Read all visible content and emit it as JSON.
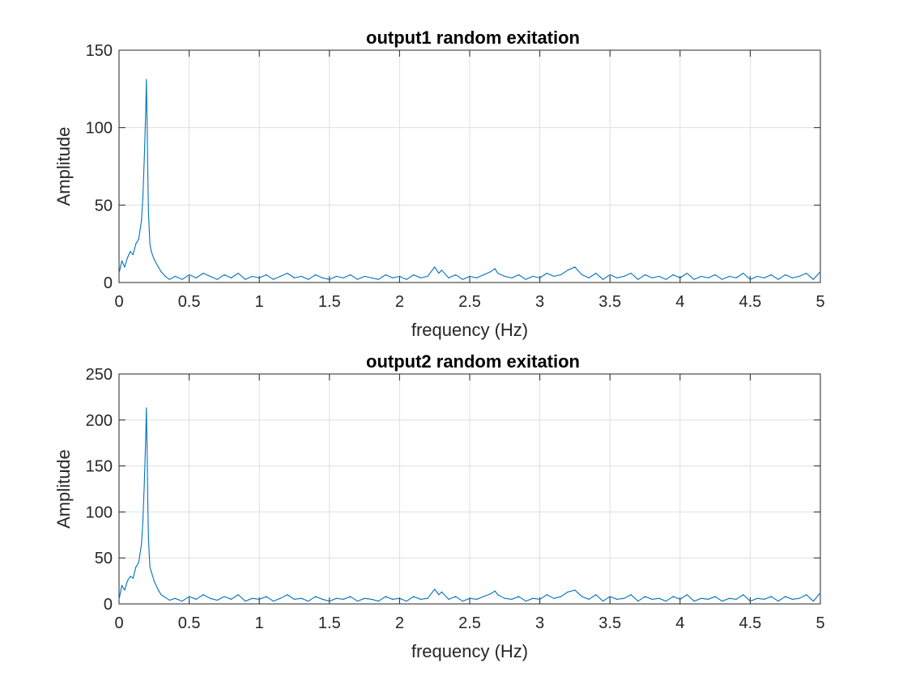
{
  "chart_data": [
    {
      "type": "line",
      "title": "output1 random exitation",
      "xlabel": "frequency (Hz)",
      "ylabel": "Amplitude",
      "xlim": [
        0,
        5
      ],
      "ylim": [
        0,
        150
      ],
      "xticks": [
        "0",
        "0.5",
        "1",
        "1.5",
        "2",
        "2.5",
        "3",
        "3.5",
        "4",
        "4.5",
        "5"
      ],
      "yticks": [
        "0",
        "50",
        "100",
        "150"
      ],
      "grid": true,
      "color": "#0072bd",
      "series": [
        {
          "x": [
            0,
            0.02,
            0.04,
            0.06,
            0.08,
            0.1,
            0.12,
            0.14,
            0.16,
            0.17,
            0.18,
            0.19,
            0.195,
            0.2,
            0.205,
            0.21,
            0.22,
            0.23,
            0.25,
            0.28,
            0.3,
            0.33,
            0.36,
            0.4,
            0.45,
            0.5,
            0.55,
            0.6,
            0.65,
            0.7,
            0.75,
            0.8,
            0.85,
            0.9,
            0.95,
            1.0,
            1.05,
            1.1,
            1.15,
            1.2,
            1.25,
            1.3,
            1.35,
            1.4,
            1.45,
            1.5,
            1.55,
            1.6,
            1.65,
            1.7,
            1.75,
            1.8,
            1.85,
            1.9,
            1.95,
            2.0,
            2.05,
            2.1,
            2.15,
            2.2,
            2.25,
            2.28,
            2.3,
            2.35,
            2.4,
            2.45,
            2.5,
            2.55,
            2.6,
            2.65,
            2.68,
            2.7,
            2.75,
            2.8,
            2.85,
            2.9,
            2.95,
            3.0,
            3.05,
            3.1,
            3.15,
            3.2,
            3.25,
            3.3,
            3.35,
            3.4,
            3.45,
            3.5,
            3.55,
            3.6,
            3.65,
            3.7,
            3.75,
            3.8,
            3.85,
            3.9,
            3.95,
            4.0,
            4.05,
            4.1,
            4.15,
            4.2,
            4.25,
            4.3,
            4.35,
            4.4,
            4.45,
            4.5,
            4.55,
            4.6,
            4.65,
            4.7,
            4.75,
            4.8,
            4.85,
            4.9,
            4.95,
            5.0
          ],
          "y": [
            6,
            14,
            10,
            16,
            20,
            18,
            25,
            28,
            40,
            55,
            80,
            110,
            131,
            105,
            70,
            45,
            25,
            20,
            15,
            10,
            7,
            4,
            2,
            4,
            2,
            5,
            3,
            6,
            4,
            2,
            5,
            3,
            6,
            2,
            4,
            3,
            5,
            2,
            4,
            6,
            3,
            4,
            2,
            5,
            3,
            2,
            4,
            3,
            5,
            2,
            4,
            3,
            2,
            5,
            3,
            4,
            2,
            5,
            3,
            4,
            10,
            6,
            8,
            3,
            5,
            2,
            4,
            3,
            5,
            7,
            9,
            6,
            4,
            3,
            5,
            2,
            4,
            3,
            6,
            4,
            5,
            8,
            10,
            5,
            3,
            6,
            2,
            5,
            3,
            4,
            6,
            2,
            5,
            3,
            4,
            2,
            5,
            3,
            6,
            2,
            4,
            3,
            5,
            2,
            4,
            3,
            6,
            2,
            4,
            3,
            5,
            2,
            5,
            3,
            4,
            6,
            2,
            7
          ]
        }
      ]
    },
    {
      "type": "line",
      "title": "output2 random exitation",
      "xlabel": "frequency (Hz)",
      "ylabel": "Amplitude",
      "xlim": [
        0,
        5
      ],
      "ylim": [
        0,
        250
      ],
      "xticks": [
        "0",
        "0.5",
        "1",
        "1.5",
        "2",
        "2.5",
        "3",
        "3.5",
        "4",
        "4.5",
        "5"
      ],
      "yticks": [
        "0",
        "50",
        "100",
        "150",
        "200",
        "250"
      ],
      "grid": true,
      "color": "#0072bd",
      "series": [
        {
          "x": [
            0,
            0.02,
            0.04,
            0.06,
            0.08,
            0.1,
            0.12,
            0.14,
            0.16,
            0.17,
            0.18,
            0.19,
            0.195,
            0.2,
            0.205,
            0.21,
            0.22,
            0.23,
            0.25,
            0.28,
            0.3,
            0.33,
            0.36,
            0.4,
            0.45,
            0.5,
            0.55,
            0.6,
            0.65,
            0.7,
            0.75,
            0.8,
            0.85,
            0.9,
            0.95,
            1.0,
            1.05,
            1.1,
            1.15,
            1.2,
            1.25,
            1.3,
            1.35,
            1.4,
            1.45,
            1.5,
            1.55,
            1.6,
            1.65,
            1.7,
            1.75,
            1.8,
            1.85,
            1.9,
            1.95,
            2.0,
            2.05,
            2.1,
            2.15,
            2.2,
            2.25,
            2.28,
            2.3,
            2.35,
            2.4,
            2.45,
            2.5,
            2.55,
            2.6,
            2.65,
            2.68,
            2.7,
            2.75,
            2.8,
            2.85,
            2.9,
            2.95,
            3.0,
            3.05,
            3.1,
            3.15,
            3.2,
            3.25,
            3.3,
            3.35,
            3.4,
            3.45,
            3.5,
            3.55,
            3.6,
            3.65,
            3.7,
            3.75,
            3.8,
            3.85,
            3.9,
            3.95,
            4.0,
            4.05,
            4.1,
            4.15,
            4.2,
            4.25,
            4.3,
            4.35,
            4.4,
            4.45,
            4.5,
            4.55,
            4.6,
            4.65,
            4.7,
            4.75,
            4.8,
            4.85,
            4.9,
            4.95,
            5.0
          ],
          "y": [
            5,
            20,
            15,
            25,
            30,
            28,
            40,
            45,
            65,
            90,
            130,
            180,
            213,
            170,
            110,
            70,
            40,
            35,
            25,
            15,
            10,
            7,
            4,
            6,
            3,
            8,
            5,
            10,
            6,
            4,
            8,
            5,
            10,
            3,
            6,
            5,
            8,
            3,
            6,
            10,
            5,
            6,
            3,
            8,
            5,
            3,
            6,
            5,
            8,
            3,
            6,
            5,
            3,
            8,
            5,
            6,
            3,
            8,
            5,
            6,
            16,
            10,
            13,
            5,
            8,
            3,
            6,
            5,
            8,
            11,
            14,
            10,
            6,
            5,
            8,
            3,
            6,
            5,
            10,
            6,
            8,
            13,
            15,
            8,
            5,
            10,
            3,
            8,
            5,
            6,
            10,
            3,
            8,
            5,
            6,
            3,
            8,
            5,
            10,
            3,
            6,
            5,
            8,
            3,
            6,
            5,
            10,
            3,
            6,
            5,
            8,
            3,
            8,
            5,
            6,
            10,
            3,
            12
          ]
        }
      ]
    }
  ]
}
